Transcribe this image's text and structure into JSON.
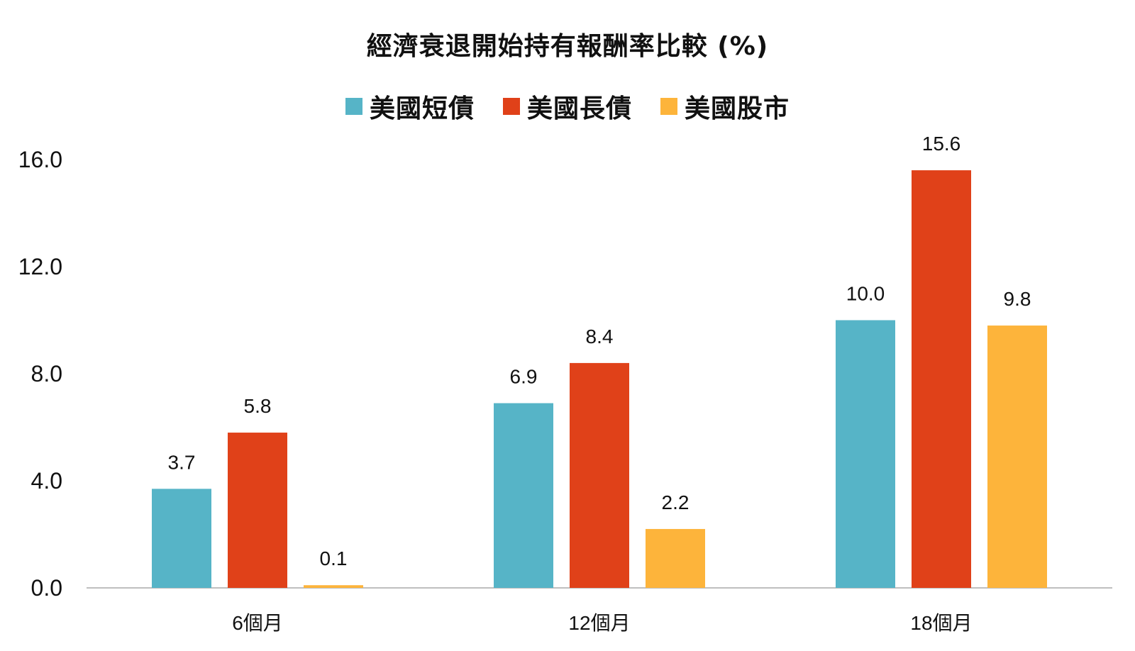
{
  "chart_data": {
    "type": "bar",
    "title": "經濟衰退開始持有報酬率比較 (%)",
    "xlabel": "",
    "ylabel": "",
    "categories": [
      "6個月",
      "12個月",
      "18個月"
    ],
    "series": [
      {
        "name": "美國短債",
        "color": "#56B4C7",
        "values": [
          3.7,
          6.9,
          10.0
        ],
        "labels": [
          "3.7",
          "6.9",
          "10.0"
        ]
      },
      {
        "name": "美國長債",
        "color": "#E04119",
        "values": [
          5.8,
          8.4,
          15.6
        ],
        "labels": [
          "5.8",
          "8.4",
          "15.6"
        ]
      },
      {
        "name": "美國股市",
        "color": "#FDB43B",
        "values": [
          0.1,
          2.2,
          9.8
        ],
        "labels": [
          "0.1",
          "2.2",
          "9.8"
        ]
      }
    ],
    "ylim": [
      0,
      16
    ],
    "yticks": [
      "0.0",
      "4.0",
      "8.0",
      "12.0",
      "16.0"
    ],
    "grid": false,
    "legend_position": "top"
  }
}
